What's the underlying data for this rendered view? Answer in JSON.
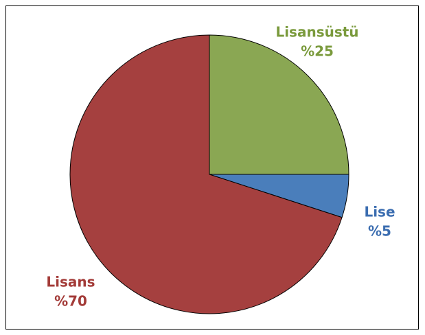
{
  "chart_data": {
    "type": "pie",
    "categories": [
      "Lisansüstü",
      "Lise",
      "Lisans"
    ],
    "values": [
      25,
      5,
      70
    ],
    "value_labels": [
      "%25",
      "%5",
      "%70"
    ],
    "colors": [
      "#8aa753",
      "#4a7ebb",
      "#a5403f"
    ],
    "label_colors": [
      "#7a9a3c",
      "#3b6db0",
      "#a33b38"
    ]
  }
}
